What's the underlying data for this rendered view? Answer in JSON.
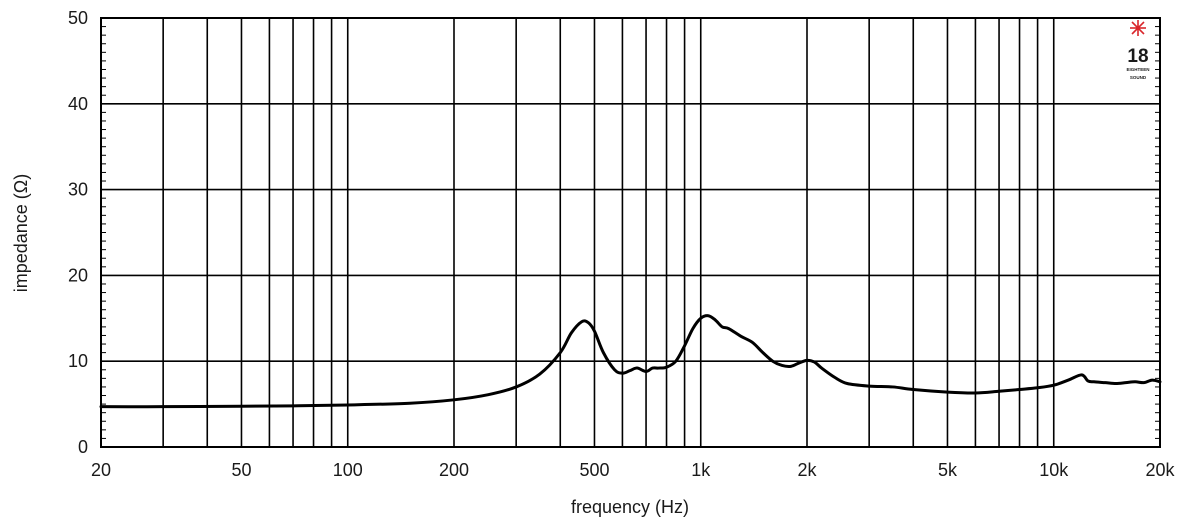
{
  "chart_data": {
    "type": "line",
    "title": "",
    "xlabel": "frequency (Hz)",
    "ylabel": "impedance (Ω)",
    "x_scale": "log",
    "xlim": [
      20,
      20000
    ],
    "ylim": [
      0,
      50
    ],
    "grid": true,
    "legend": "none",
    "x_ticks": [
      {
        "value": 20,
        "label": "20"
      },
      {
        "value": 50,
        "label": "50"
      },
      {
        "value": 100,
        "label": "100"
      },
      {
        "value": 200,
        "label": "200"
      },
      {
        "value": 500,
        "label": "500"
      },
      {
        "value": 1000,
        "label": "1k"
      },
      {
        "value": 2000,
        "label": "2k"
      },
      {
        "value": 5000,
        "label": "5k"
      },
      {
        "value": 10000,
        "label": "10k"
      },
      {
        "value": 20000,
        "label": "20k"
      }
    ],
    "x_gridlines": [
      20,
      30,
      40,
      50,
      60,
      70,
      80,
      90,
      100,
      200,
      300,
      400,
      500,
      600,
      700,
      800,
      900,
      1000,
      2000,
      3000,
      4000,
      5000,
      6000,
      7000,
      8000,
      9000,
      10000,
      20000
    ],
    "y_ticks": [
      {
        "value": 0,
        "label": "0"
      },
      {
        "value": 10,
        "label": "10"
      },
      {
        "value": 20,
        "label": "20"
      },
      {
        "value": 30,
        "label": "30"
      },
      {
        "value": 40,
        "label": "40"
      },
      {
        "value": 50,
        "label": "50"
      }
    ],
    "y_minor_step": 1,
    "series": [
      {
        "color": "#000000",
        "x": [
          20,
          30,
          50,
          70,
          100,
          150,
          200,
          250,
          300,
          350,
          400,
          430,
          460,
          480,
          500,
          530,
          570,
          600,
          630,
          660,
          700,
          730,
          760,
          800,
          850,
          900,
          950,
          1000,
          1050,
          1100,
          1150,
          1200,
          1300,
          1400,
          1500,
          1600,
          1700,
          1800,
          1900,
          2000,
          2100,
          2200,
          2400,
          2600,
          3000,
          3500,
          4000,
          5000,
          6000,
          7000,
          8000,
          9000,
          10000,
          11000,
          12000,
          12500,
          13000,
          14000,
          15000,
          16000,
          17000,
          18000,
          19000,
          20000
        ],
        "y": [
          4.7,
          4.7,
          4.75,
          4.8,
          4.9,
          5.1,
          5.5,
          6.1,
          7.0,
          8.5,
          11.0,
          13.3,
          14.6,
          14.5,
          13.5,
          11.0,
          9.0,
          8.6,
          8.9,
          9.2,
          8.8,
          9.2,
          9.2,
          9.3,
          10.0,
          11.8,
          13.8,
          15.0,
          15.3,
          14.8,
          14.0,
          13.8,
          12.9,
          12.2,
          11.0,
          10.0,
          9.5,
          9.4,
          9.8,
          10.1,
          9.9,
          9.2,
          8.1,
          7.4,
          7.1,
          7.0,
          6.7,
          6.4,
          6.3,
          6.5,
          6.7,
          6.9,
          7.2,
          7.8,
          8.4,
          7.7,
          7.6,
          7.5,
          7.4,
          7.5,
          7.6,
          7.5,
          7.8,
          7.6
        ]
      }
    ]
  },
  "logo": {
    "number": "18",
    "line1": "EIGHTEEN",
    "line2": "SOUND",
    "accent_color": "#d9262b"
  }
}
